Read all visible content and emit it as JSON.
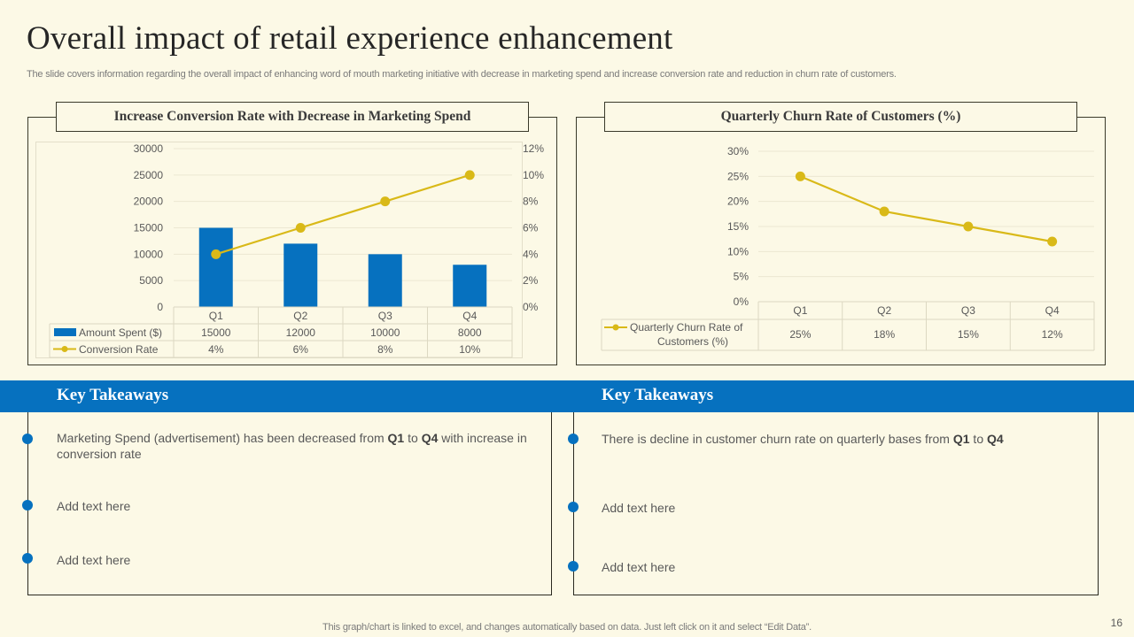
{
  "slide": {
    "title": "Overall impact of retail experience enhancement",
    "subtitle": "The slide covers information regarding the overall impact of enhancing word of mouth marketing initiative with decrease in marketing spend and increase conversion rate and reduction in churn rate of customers.",
    "footer_note": "This graph/chart is linked to excel,  and changes automatically based on data. Just left click on it and select “Edit Data”.",
    "page_number": "16"
  },
  "colors": {
    "background": "#FCF9E6",
    "bar_blue": "#0671BF",
    "line_yellow": "#D9B918",
    "band_blue": "#0671BF"
  },
  "chart_data": [
    {
      "type": "bar+line",
      "title": "Increase Conversion Rate with Decrease in Marketing Spend",
      "categories": [
        "Q1",
        "Q2",
        "Q3",
        "Q4"
      ],
      "series": [
        {
          "name": "Amount Spent ($)",
          "type": "bar",
          "axis": "left",
          "values": [
            15000,
            12000,
            10000,
            8000
          ],
          "labels": [
            "15000",
            "12000",
            "10000",
            "8000"
          ]
        },
        {
          "name": "Conversion Rate",
          "type": "line",
          "axis": "right",
          "values": [
            4,
            6,
            8,
            10
          ],
          "labels": [
            "4%",
            "6%",
            "8%",
            "10%"
          ]
        }
      ],
      "y_left": {
        "min": 0,
        "max": 30000,
        "ticks": [
          0,
          5000,
          10000,
          15000,
          20000,
          25000,
          30000
        ],
        "tick_labels": [
          "0",
          "5000",
          "10000",
          "15000",
          "20000",
          "25000",
          "30000"
        ]
      },
      "y_right": {
        "min": 0,
        "max": 12,
        "ticks": [
          0,
          2,
          4,
          6,
          8,
          10,
          12
        ],
        "tick_labels": [
          "0%",
          "2%",
          "4%",
          "6%",
          "8%",
          "10%",
          "12%"
        ]
      },
      "grid": true,
      "legend": "data-table-bottom"
    },
    {
      "type": "line",
      "title": "Quarterly Churn Rate of Customers (%)",
      "categories": [
        "Q1",
        "Q2",
        "Q3",
        "Q4"
      ],
      "series": [
        {
          "name": "Quarterly Churn Rate of Customers (%)",
          "name_lines": [
            "Quarterly Churn Rate of",
            "Customers (%)"
          ],
          "values": [
            25,
            18,
            15,
            12
          ],
          "labels": [
            "25%",
            "18%",
            "15%",
            "12%"
          ]
        }
      ],
      "y": {
        "min": 0,
        "max": 30,
        "ticks": [
          0,
          5,
          10,
          15,
          20,
          25,
          30
        ],
        "tick_labels": [
          "0%",
          "5%",
          "10%",
          "15%",
          "20%",
          "25%",
          "30%"
        ]
      },
      "grid": true,
      "legend": "data-table-bottom"
    }
  ],
  "takeaways": [
    {
      "heading": "Key Takeaways",
      "items": [
        {
          "parts": [
            {
              "t": "Marketing Spend (advertisement) has been decreased from "
            },
            {
              "t": "Q1",
              "b": true
            },
            {
              "t": " to "
            },
            {
              "t": "Q4",
              "b": true
            },
            {
              "t": " with increase in conversion rate"
            }
          ]
        },
        {
          "parts": [
            {
              "t": "Add text here"
            }
          ]
        },
        {
          "parts": [
            {
              "t": "Add text here"
            }
          ]
        }
      ]
    },
    {
      "heading": "Key Takeaways",
      "items": [
        {
          "parts": [
            {
              "t": "There is decline in customer churn rate on quarterly bases from "
            },
            {
              "t": "Q1",
              "b": true
            },
            {
              "t": " to "
            },
            {
              "t": "Q4",
              "b": true
            }
          ]
        },
        {
          "parts": [
            {
              "t": "Add text here"
            }
          ]
        },
        {
          "parts": [
            {
              "t": "Add text here"
            }
          ]
        }
      ]
    }
  ]
}
